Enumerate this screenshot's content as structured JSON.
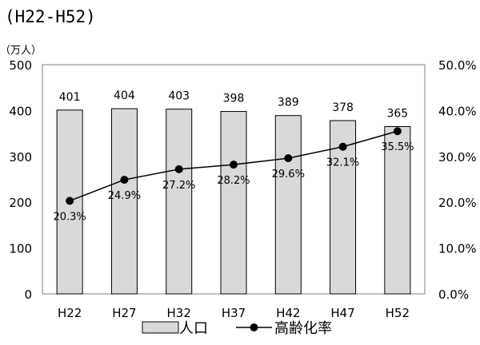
{
  "chart_data": {
    "type": "bar",
    "title": "(H22-H52)",
    "left_unit": "（万人）",
    "categories": [
      "H22",
      "H27",
      "H32",
      "H37",
      "H42",
      "H47",
      "H52"
    ],
    "series": [
      {
        "name": "人口",
        "type": "bar",
        "axis": "left",
        "values": [
          401,
          404,
          403,
          398,
          389,
          378,
          365
        ],
        "labels": [
          "401",
          "404",
          "403",
          "398",
          "389",
          "378",
          "365"
        ],
        "color": "#d9d9d9"
      },
      {
        "name": "高齢化率",
        "type": "line",
        "axis": "right",
        "values": [
          20.3,
          24.9,
          27.2,
          28.2,
          29.6,
          32.1,
          35.5
        ],
        "labels": [
          "20.3%",
          "24.9%",
          "27.2%",
          "28.2%",
          "29.6%",
          "32.1%",
          "35.5%"
        ],
        "color": "#000000"
      }
    ],
    "y_left": {
      "min": 0,
      "max": 500,
      "ticks": [
        "0",
        "100",
        "200",
        "300",
        "400",
        "500"
      ]
    },
    "y_right": {
      "min": 0,
      "max": 50,
      "ticks": [
        "0.0%",
        "10.0%",
        "20.0%",
        "30.0%",
        "40.0%",
        "50.0%"
      ]
    },
    "grid": false,
    "legend_position": "bottom"
  }
}
